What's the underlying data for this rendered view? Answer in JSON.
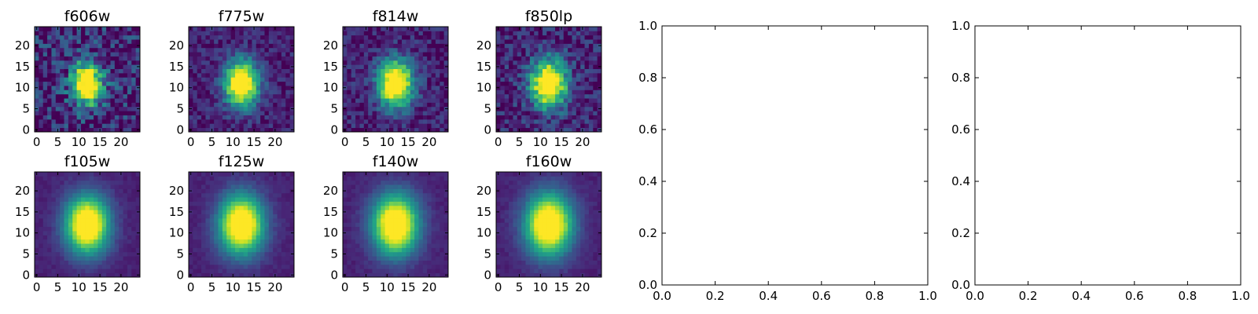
{
  "chart_data": [
    {
      "type": "heatmap",
      "title": "f606w",
      "xticks": [
        "0",
        "5",
        "10",
        "15",
        "20"
      ],
      "yticks": [
        "0",
        "5",
        "10",
        "15",
        "20"
      ],
      "xlim": [
        -0.5,
        24.5
      ],
      "ylim": [
        -0.5,
        24.5
      ],
      "grid_size": 25,
      "center": [
        12,
        11
      ],
      "sigma": [
        2.6,
        3.6
      ],
      "noise": 0.38,
      "seed": 11
    },
    {
      "type": "heatmap",
      "title": "f775w",
      "xticks": [
        "0",
        "5",
        "10",
        "15",
        "20"
      ],
      "yticks": [
        "0",
        "5",
        "10",
        "15",
        "20"
      ],
      "xlim": [
        -0.5,
        24.5
      ],
      "ylim": [
        -0.5,
        24.5
      ],
      "grid_size": 25,
      "center": [
        12,
        11
      ],
      "sigma": [
        2.8,
        3.8
      ],
      "noise": 0.18,
      "seed": 23
    },
    {
      "type": "heatmap",
      "title": "f814w",
      "xticks": [
        "0",
        "5",
        "10",
        "15",
        "20"
      ],
      "yticks": [
        "0",
        "5",
        "10",
        "15",
        "20"
      ],
      "xlim": [
        -0.5,
        24.5
      ],
      "ylim": [
        -0.5,
        24.5
      ],
      "grid_size": 25,
      "center": [
        12,
        11
      ],
      "sigma": [
        2.9,
        3.9
      ],
      "noise": 0.2,
      "seed": 37
    },
    {
      "type": "heatmap",
      "title": "f850lp",
      "xticks": [
        "0",
        "5",
        "10",
        "15",
        "20"
      ],
      "yticks": [
        "0",
        "5",
        "10",
        "15",
        "20"
      ],
      "xlim": [
        -0.5,
        24.5
      ],
      "ylim": [
        -0.5,
        24.5
      ],
      "grid_size": 25,
      "center": [
        12,
        11
      ],
      "sigma": [
        3.0,
        4.0
      ],
      "noise": 0.26,
      "seed": 41
    },
    {
      "type": "heatmap",
      "title": "f105w",
      "xticks": [
        "0",
        "5",
        "10",
        "15",
        "20"
      ],
      "yticks": [
        "0",
        "5",
        "10",
        "15",
        "20"
      ],
      "xlim": [
        -0.5,
        24.5
      ],
      "ylim": [
        -0.5,
        24.5
      ],
      "grid_size": 25,
      "center": [
        12,
        12
      ],
      "sigma": [
        3.6,
        4.8
      ],
      "noise": 0.05,
      "seed": 53
    },
    {
      "type": "heatmap",
      "title": "f125w",
      "xticks": [
        "0",
        "5",
        "10",
        "15",
        "20"
      ],
      "yticks": [
        "0",
        "5",
        "10",
        "15",
        "20"
      ],
      "xlim": [
        -0.5,
        24.5
      ],
      "ylim": [
        -0.5,
        24.5
      ],
      "grid_size": 25,
      "center": [
        12,
        12
      ],
      "sigma": [
        3.7,
        4.9
      ],
      "noise": 0.05,
      "seed": 67
    },
    {
      "type": "heatmap",
      "title": "f140w",
      "xticks": [
        "0",
        "5",
        "10",
        "15",
        "20"
      ],
      "yticks": [
        "0",
        "5",
        "10",
        "15",
        "20"
      ],
      "xlim": [
        -0.5,
        24.5
      ],
      "ylim": [
        -0.5,
        24.5
      ],
      "grid_size": 25,
      "center": [
        12,
        12
      ],
      "sigma": [
        3.8,
        5.0
      ],
      "noise": 0.05,
      "seed": 71
    },
    {
      "type": "heatmap",
      "title": "f160w",
      "xticks": [
        "0",
        "5",
        "10",
        "15",
        "20"
      ],
      "yticks": [
        "0",
        "5",
        "10",
        "15",
        "20"
      ],
      "xlim": [
        -0.5,
        24.5
      ],
      "ylim": [
        -0.5,
        24.5
      ],
      "grid_size": 25,
      "center": [
        12,
        12
      ],
      "sigma": [
        3.9,
        5.1
      ],
      "noise": 0.05,
      "seed": 83
    },
    {
      "type": "scatter",
      "title": "",
      "xlabel": "",
      "ylabel": "",
      "xlim": [
        0,
        1
      ],
      "ylim": [
        0,
        1
      ],
      "xticks": [
        "0.0",
        "0.2",
        "0.4",
        "0.6",
        "0.8",
        "1.0"
      ],
      "yticks": [
        "0.0",
        "0.2",
        "0.4",
        "0.6",
        "0.8",
        "1.0"
      ],
      "series": []
    },
    {
      "type": "scatter",
      "title": "",
      "xlabel": "",
      "ylabel": "",
      "xlim": [
        0,
        1
      ],
      "ylim": [
        0,
        1
      ],
      "xticks": [
        "0.0",
        "0.2",
        "0.4",
        "0.6",
        "0.8",
        "1.0"
      ],
      "yticks": [
        "0.0",
        "0.2",
        "0.4",
        "0.6",
        "0.8",
        "1.0"
      ],
      "series": []
    }
  ],
  "colormap": "viridis"
}
